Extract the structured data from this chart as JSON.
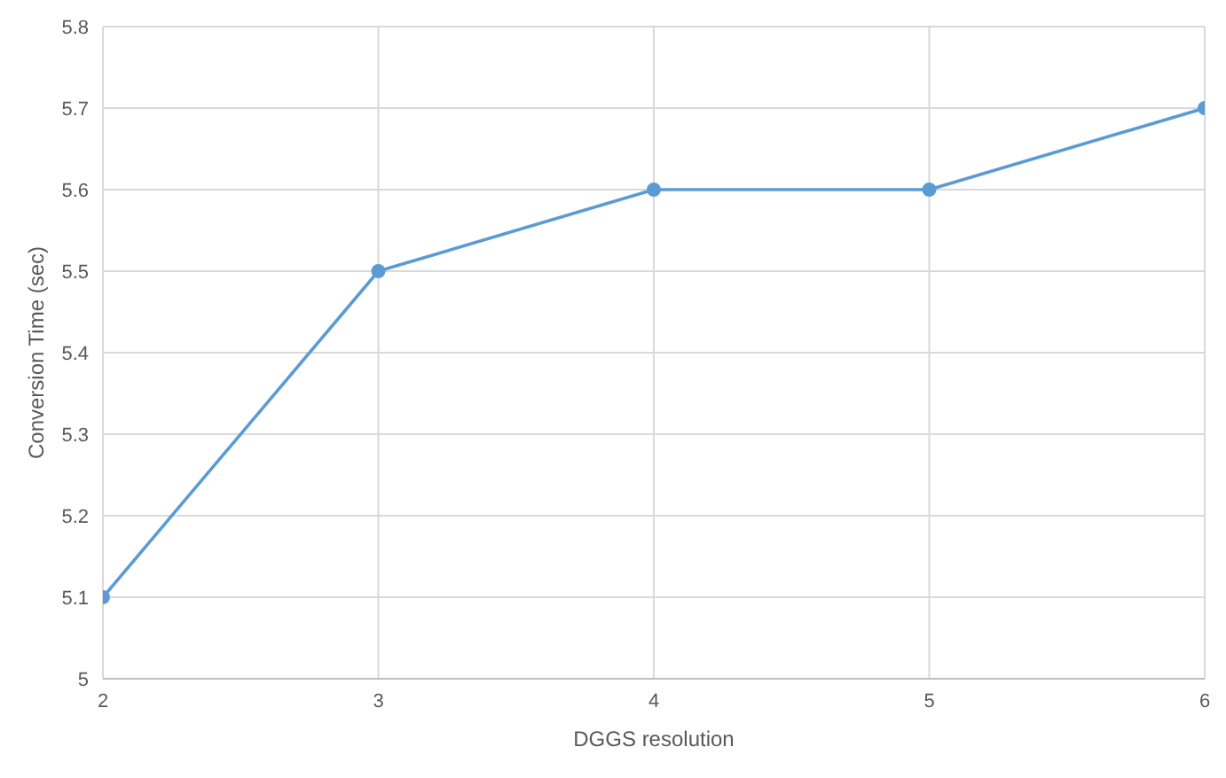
{
  "chart_data": {
    "type": "line",
    "xlabel": "DGGS resolution",
    "ylabel": "Conversion Time (sec)",
    "x": [
      2,
      3,
      4,
      5,
      6
    ],
    "series": [
      {
        "color": "#5b9bd5",
        "values": [
          5.1,
          5.5,
          5.6,
          5.6,
          5.7
        ]
      }
    ],
    "xlim": [
      2,
      6
    ],
    "xticks": [
      2,
      3,
      4,
      5,
      6
    ],
    "ylim": [
      5,
      5.8
    ],
    "yticks": [
      5,
      5.1,
      5.2,
      5.3,
      5.4,
      5.5,
      5.6,
      5.7,
      5.8
    ],
    "grid": true,
    "marker": "circle",
    "line_style": "solid"
  }
}
